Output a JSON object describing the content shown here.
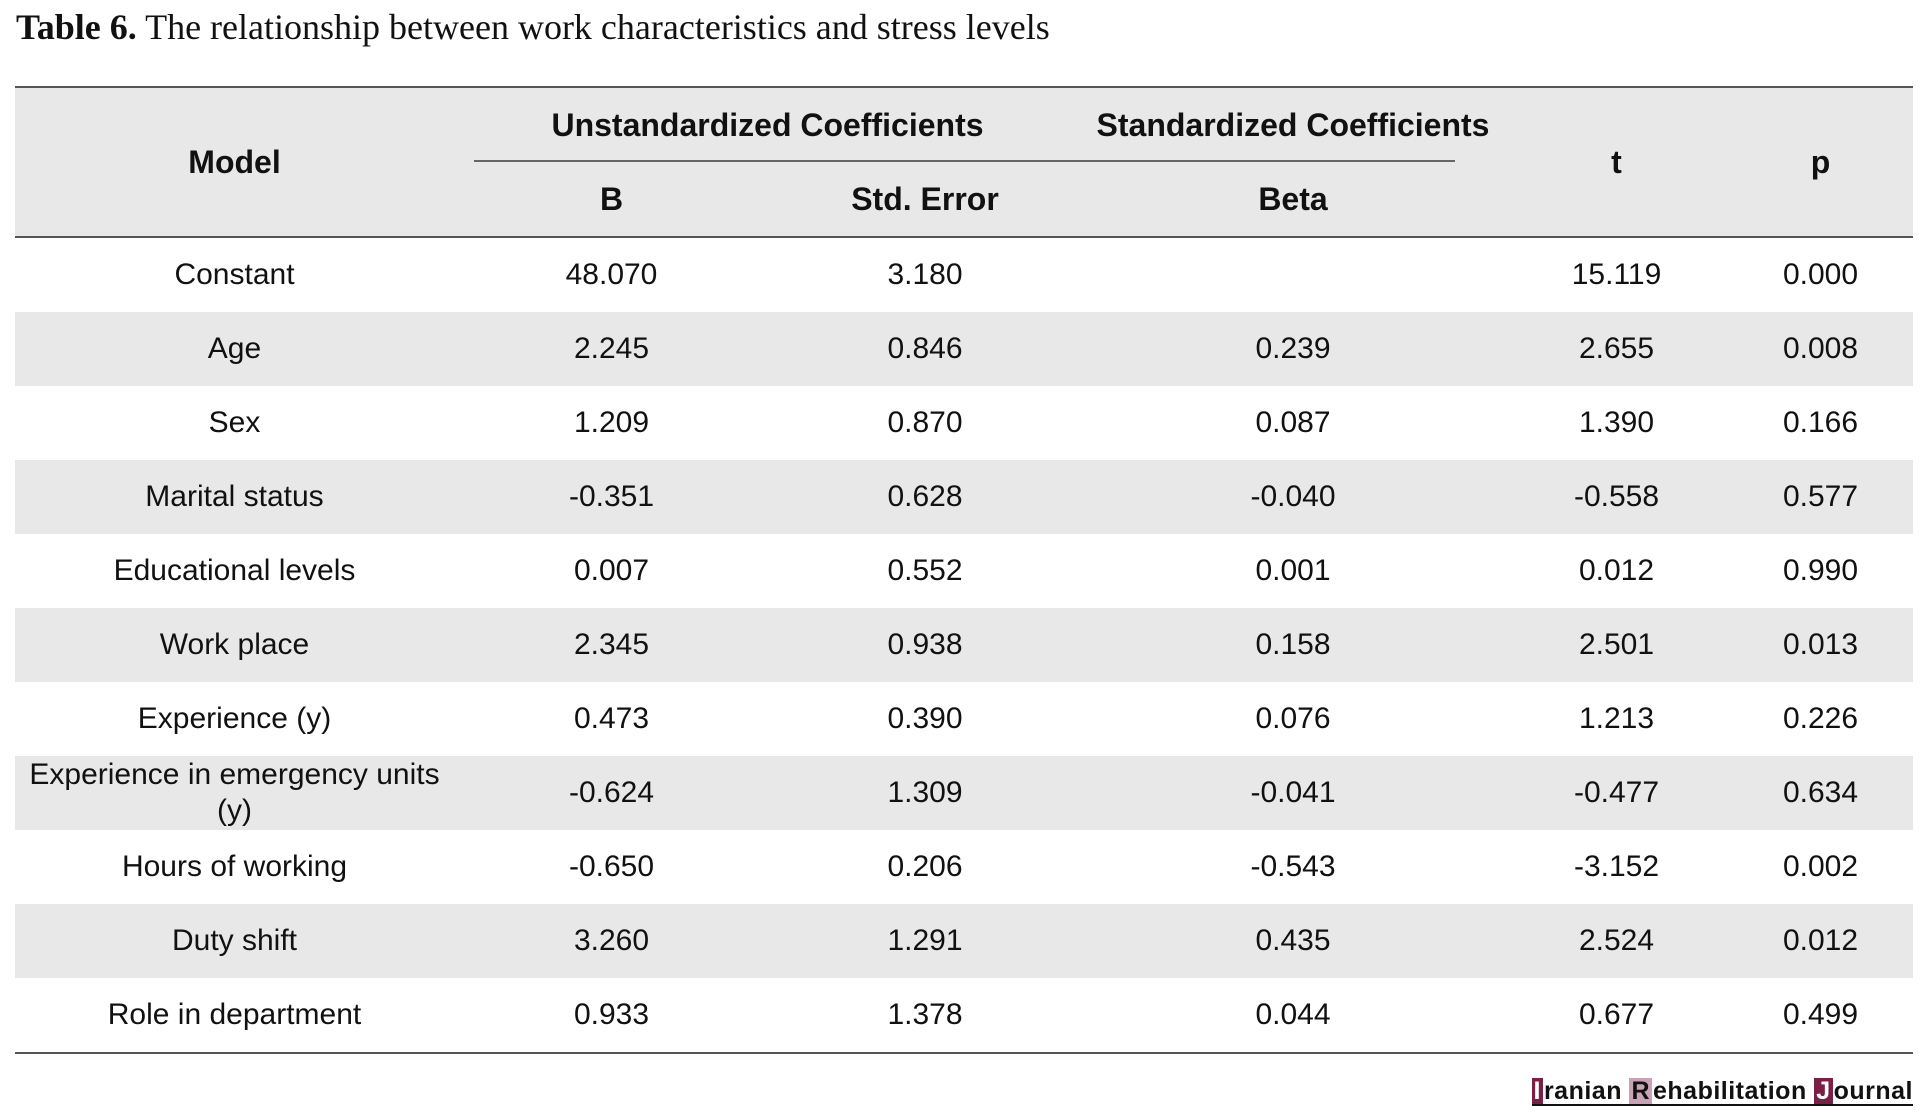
{
  "caption": {
    "label": "Table 6.",
    "text": "The relationship between work characteristics and stress levels"
  },
  "table": {
    "headers": {
      "model": "Model",
      "unstandardized_group": "Unstandardized Coefficients",
      "standardized_group": "Standardized Coefficients",
      "b": "B",
      "std_error": "Std. Error",
      "beta": "Beta",
      "t": "t",
      "p": "p"
    },
    "rows": [
      {
        "model": "Constant",
        "b": "48.070",
        "std_error": "3.180",
        "beta": "",
        "t": "15.119",
        "p": "0.000"
      },
      {
        "model": "Age",
        "b": "2.245",
        "std_error": "0.846",
        "beta": "0.239",
        "t": "2.655",
        "p": "0.008"
      },
      {
        "model": "Sex",
        "b": "1.209",
        "std_error": "0.870",
        "beta": "0.087",
        "t": "1.390",
        "p": "0.166"
      },
      {
        "model": "Marital status",
        "b": "-0.351",
        "std_error": "0.628",
        "beta": "-0.040",
        "t": "-0.558",
        "p": "0.577"
      },
      {
        "model": "Educational levels",
        "b": "0.007",
        "std_error": "0.552",
        "beta": "0.001",
        "t": "0.012",
        "p": "0.990"
      },
      {
        "model": "Work place",
        "b": "2.345",
        "std_error": "0.938",
        "beta": "0.158",
        "t": "2.501",
        "p": "0.013"
      },
      {
        "model": "Experience (y)",
        "b": "0.473",
        "std_error": "0.390",
        "beta": "0.076",
        "t": "1.213",
        "p": "0.226"
      },
      {
        "model": "Experience in emergency units (y)",
        "b": "-0.624",
        "std_error": "1.309",
        "beta": "-0.041",
        "t": "-0.477",
        "p": "0.634"
      },
      {
        "model": "Hours of working",
        "b": "-0.650",
        "std_error": "0.206",
        "beta": "-0.543",
        "t": "-3.152",
        "p": "0.002"
      },
      {
        "model": "Duty shift",
        "b": "3.260",
        "std_error": "1.291",
        "beta": "0.435",
        "t": "2.524",
        "p": "0.012"
      },
      {
        "model": "Role in department",
        "b": "0.933",
        "std_error": "1.378",
        "beta": "0.044",
        "t": "0.677",
        "p": "0.499"
      }
    ]
  },
  "watermark": {
    "initial_1": "I",
    "word_1": "ranian ",
    "initial_2": "R",
    "word_2": "ehabilitation ",
    "initial_3": "J",
    "word_3": "ournal",
    "accent_color": "#7b1f47"
  }
}
